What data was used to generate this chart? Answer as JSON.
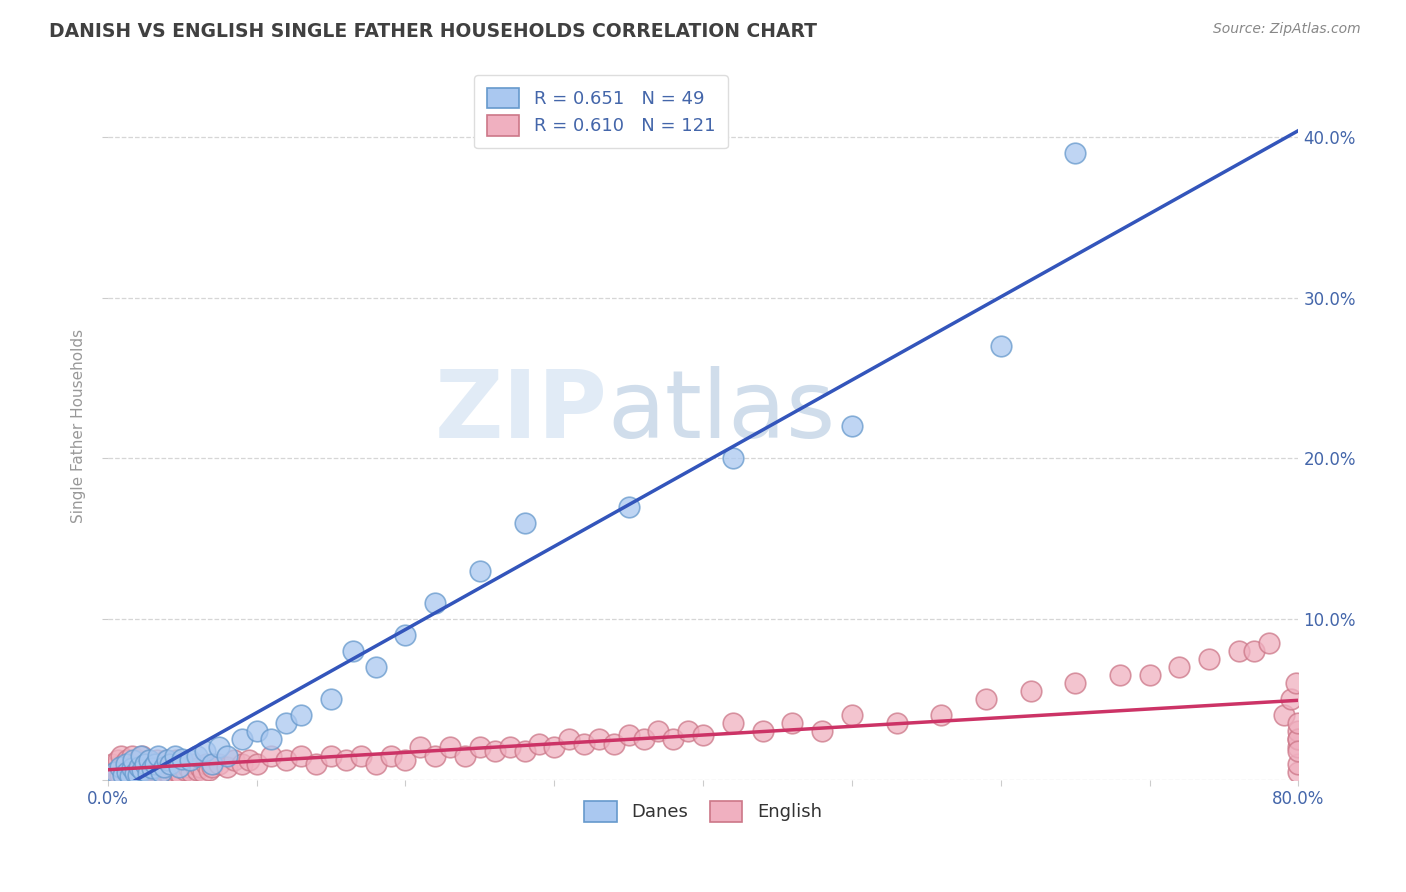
{
  "title": "DANISH VS ENGLISH SINGLE FATHER HOUSEHOLDS CORRELATION CHART",
  "source": "Source: ZipAtlas.com",
  "ylabel": "Single Father Households",
  "xlim": [
    0.0,
    0.8
  ],
  "ylim": [
    0.0,
    0.44
  ],
  "danes_color": "#aac8f0",
  "danes_edge_color": "#6699cc",
  "english_color": "#f0b0c0",
  "english_edge_color": "#cc7788",
  "danes_line_color": "#3355bb",
  "english_line_color": "#cc3366",
  "danes_R": 0.651,
  "danes_N": 49,
  "english_R": 0.61,
  "english_N": 121,
  "watermark_zip": "ZIP",
  "watermark_atlas": "atlas",
  "background_color": "#ffffff",
  "grid_color": "#cccccc",
  "title_color": "#404040",
  "axis_label_color": "#4466aa",
  "legend_text_color": "#4466aa",
  "danes_x": [
    0.005,
    0.008,
    0.01,
    0.012,
    0.013,
    0.015,
    0.016,
    0.017,
    0.018,
    0.02,
    0.021,
    0.022,
    0.023,
    0.025,
    0.027,
    0.028,
    0.03,
    0.032,
    0.034,
    0.036,
    0.038,
    0.04,
    0.042,
    0.045,
    0.048,
    0.05,
    0.055,
    0.06,
    0.065,
    0.07,
    0.075,
    0.08,
    0.09,
    0.1,
    0.11,
    0.12,
    0.13,
    0.15,
    0.165,
    0.18,
    0.2,
    0.22,
    0.25,
    0.28,
    0.35,
    0.42,
    0.5,
    0.6,
    0.65
  ],
  "danes_y": [
    0.005,
    0.008,
    0.003,
    0.01,
    0.005,
    0.002,
    0.007,
    0.012,
    0.004,
    0.003,
    0.008,
    0.015,
    0.006,
    0.01,
    0.004,
    0.012,
    0.007,
    0.01,
    0.015,
    0.005,
    0.008,
    0.012,
    0.01,
    0.015,
    0.008,
    0.013,
    0.012,
    0.015,
    0.018,
    0.01,
    0.02,
    0.015,
    0.025,
    0.03,
    0.025,
    0.035,
    0.04,
    0.05,
    0.08,
    0.07,
    0.09,
    0.11,
    0.13,
    0.16,
    0.17,
    0.2,
    0.22,
    0.27,
    0.39
  ],
  "english_x": [
    0.003,
    0.005,
    0.006,
    0.007,
    0.008,
    0.009,
    0.01,
    0.011,
    0.012,
    0.013,
    0.014,
    0.015,
    0.016,
    0.017,
    0.018,
    0.019,
    0.02,
    0.021,
    0.022,
    0.023,
    0.024,
    0.025,
    0.026,
    0.027,
    0.028,
    0.029,
    0.03,
    0.031,
    0.032,
    0.033,
    0.034,
    0.035,
    0.036,
    0.037,
    0.038,
    0.039,
    0.04,
    0.041,
    0.042,
    0.043,
    0.044,
    0.045,
    0.046,
    0.047,
    0.048,
    0.049,
    0.05,
    0.052,
    0.054,
    0.056,
    0.058,
    0.06,
    0.062,
    0.064,
    0.066,
    0.068,
    0.07,
    0.075,
    0.08,
    0.085,
    0.09,
    0.095,
    0.1,
    0.11,
    0.12,
    0.13,
    0.14,
    0.15,
    0.16,
    0.17,
    0.18,
    0.19,
    0.2,
    0.21,
    0.22,
    0.23,
    0.24,
    0.25,
    0.26,
    0.27,
    0.28,
    0.29,
    0.3,
    0.31,
    0.32,
    0.33,
    0.34,
    0.35,
    0.36,
    0.37,
    0.38,
    0.39,
    0.4,
    0.42,
    0.44,
    0.46,
    0.48,
    0.5,
    0.53,
    0.56,
    0.59,
    0.62,
    0.65,
    0.68,
    0.7,
    0.72,
    0.74,
    0.76,
    0.77,
    0.78,
    0.79,
    0.795,
    0.798,
    0.8,
    0.8,
    0.8,
    0.8,
    0.8,
    0.8,
    0.8,
    0.8
  ],
  "english_y": [
    0.01,
    0.008,
    0.005,
    0.012,
    0.003,
    0.015,
    0.007,
    0.01,
    0.005,
    0.012,
    0.003,
    0.008,
    0.015,
    0.006,
    0.01,
    0.004,
    0.012,
    0.007,
    0.003,
    0.015,
    0.005,
    0.01,
    0.008,
    0.004,
    0.012,
    0.006,
    0.003,
    0.01,
    0.005,
    0.012,
    0.004,
    0.008,
    0.003,
    0.01,
    0.006,
    0.012,
    0.005,
    0.008,
    0.003,
    0.01,
    0.006,
    0.004,
    0.012,
    0.005,
    0.008,
    0.003,
    0.01,
    0.006,
    0.008,
    0.005,
    0.01,
    0.006,
    0.008,
    0.005,
    0.01,
    0.006,
    0.008,
    0.01,
    0.008,
    0.012,
    0.01,
    0.012,
    0.01,
    0.015,
    0.012,
    0.015,
    0.01,
    0.015,
    0.012,
    0.015,
    0.01,
    0.015,
    0.012,
    0.02,
    0.015,
    0.02,
    0.015,
    0.02,
    0.018,
    0.02,
    0.018,
    0.022,
    0.02,
    0.025,
    0.022,
    0.025,
    0.022,
    0.028,
    0.025,
    0.03,
    0.025,
    0.03,
    0.028,
    0.035,
    0.03,
    0.035,
    0.03,
    0.04,
    0.035,
    0.04,
    0.05,
    0.055,
    0.06,
    0.065,
    0.065,
    0.07,
    0.075,
    0.08,
    0.08,
    0.085,
    0.04,
    0.05,
    0.06,
    0.005,
    0.01,
    0.02,
    0.025,
    0.03,
    0.025,
    0.035,
    0.018
  ]
}
